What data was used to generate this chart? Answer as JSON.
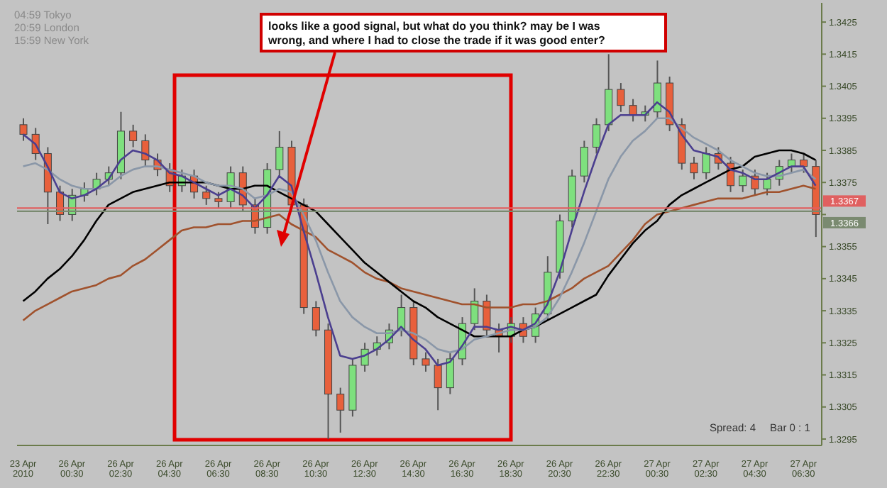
{
  "chart_data": {
    "type": "candlestick",
    "categories": [
      "23 Apr 2010",
      null,
      null,
      null,
      "26 Apr 00:30",
      null,
      null,
      null,
      "26 Apr 02:30",
      null,
      null,
      null,
      "26 Apr 04:30",
      null,
      null,
      null,
      "26 Apr 06:30",
      null,
      null,
      null,
      "26 Apr 08:30",
      null,
      null,
      null,
      "26 Apr 10:30",
      null,
      null,
      null,
      "26 Apr 12:30",
      null,
      null,
      null,
      "26 Apr 14:30",
      null,
      null,
      null,
      "26 Apr 16:30",
      null,
      null,
      null,
      "26 Apr 18:30",
      null,
      null,
      null,
      "26 Apr 20:30",
      null,
      null,
      null,
      "26 Apr 22:30",
      null,
      null,
      null,
      "27 Apr 00:30",
      null,
      null,
      null,
      "27 Apr 02:30",
      null,
      null,
      null,
      "27 Apr 04:30",
      null,
      null,
      null,
      "27 Apr 06:30",
      null
    ],
    "ohlc": [
      [
        1.3393,
        1.3395,
        1.3388,
        1.339
      ],
      [
        1.339,
        1.3392,
        1.3382,
        1.3384
      ],
      [
        1.3384,
        1.3386,
        1.3362,
        1.3372
      ],
      [
        1.3372,
        1.3374,
        1.3363,
        1.3365
      ],
      [
        1.3365,
        1.3373,
        1.3363,
        1.3371
      ],
      [
        1.3371,
        1.3375,
        1.3369,
        1.3373
      ],
      [
        1.3373,
        1.3378,
        1.3371,
        1.3376
      ],
      [
        1.3376,
        1.338,
        1.3374,
        1.3378
      ],
      [
        1.3378,
        1.3397,
        1.3376,
        1.3391
      ],
      [
        1.3391,
        1.3393,
        1.3386,
        1.3388
      ],
      [
        1.3388,
        1.339,
        1.338,
        1.3382
      ],
      [
        1.3382,
        1.3384,
        1.3377,
        1.3379
      ],
      [
        1.3379,
        1.3381,
        1.3372,
        1.3374
      ],
      [
        1.3374,
        1.3379,
        1.3372,
        1.3377
      ],
      [
        1.3377,
        1.3379,
        1.337,
        1.3372
      ],
      [
        1.3372,
        1.3374,
        1.3368,
        1.337
      ],
      [
        1.337,
        1.3372,
        1.3367,
        1.3369
      ],
      [
        1.3369,
        1.338,
        1.3367,
        1.3378
      ],
      [
        1.3378,
        1.338,
        1.3366,
        1.3368
      ],
      [
        1.3368,
        1.337,
        1.3359,
        1.3361
      ],
      [
        1.3361,
        1.3381,
        1.3359,
        1.3379
      ],
      [
        1.3379,
        1.3391,
        1.3377,
        1.3386
      ],
      [
        1.3386,
        1.3388,
        1.3366,
        1.3368
      ],
      [
        1.3368,
        1.337,
        1.3334,
        1.3336
      ],
      [
        1.3336,
        1.3338,
        1.3327,
        1.3329
      ],
      [
        1.3329,
        1.3331,
        1.3295,
        1.3309
      ],
      [
        1.3309,
        1.3311,
        1.3297,
        1.3304
      ],
      [
        1.3304,
        1.332,
        1.3302,
        1.3318
      ],
      [
        1.3318,
        1.3325,
        1.3316,
        1.3323
      ],
      [
        1.3323,
        1.3327,
        1.3321,
        1.3325
      ],
      [
        1.3325,
        1.3331,
        1.3323,
        1.3329
      ],
      [
        1.3329,
        1.334,
        1.3327,
        1.3336
      ],
      [
        1.3336,
        1.3338,
        1.3318,
        1.332
      ],
      [
        1.332,
        1.3322,
        1.3316,
        1.3318
      ],
      [
        1.3318,
        1.332,
        1.3304,
        1.3311
      ],
      [
        1.3311,
        1.3322,
        1.3309,
        1.332
      ],
      [
        1.332,
        1.3333,
        1.3318,
        1.3331
      ],
      [
        1.3331,
        1.3342,
        1.3329,
        1.3338
      ],
      [
        1.3338,
        1.334,
        1.3327,
        1.3329
      ],
      [
        1.3329,
        1.3331,
        1.3322,
        1.3327
      ],
      [
        1.3327,
        1.3333,
        1.3325,
        1.3331
      ],
      [
        1.3331,
        1.3333,
        1.3325,
        1.3327
      ],
      [
        1.3327,
        1.3336,
        1.3325,
        1.3334
      ],
      [
        1.3334,
        1.3352,
        1.3332,
        1.3347
      ],
      [
        1.3347,
        1.3365,
        1.3345,
        1.3363
      ],
      [
        1.3363,
        1.3379,
        1.3361,
        1.3377
      ],
      [
        1.3377,
        1.3388,
        1.3375,
        1.3386
      ],
      [
        1.3386,
        1.3395,
        1.3384,
        1.3393
      ],
      [
        1.3393,
        1.3415,
        1.3391,
        1.3404
      ],
      [
        1.3404,
        1.3406,
        1.3397,
        1.3399
      ],
      [
        1.3399,
        1.3401,
        1.3394,
        1.3396
      ],
      [
        1.3396,
        1.3399,
        1.3394,
        1.3397
      ],
      [
        1.3397,
        1.3413,
        1.3395,
        1.3406
      ],
      [
        1.3406,
        1.3408,
        1.3391,
        1.3393
      ],
      [
        1.3393,
        1.3395,
        1.3379,
        1.3381
      ],
      [
        1.3381,
        1.3383,
        1.3376,
        1.3378
      ],
      [
        1.3378,
        1.3386,
        1.3376,
        1.3384
      ],
      [
        1.3384,
        1.3386,
        1.3379,
        1.3381
      ],
      [
        1.3381,
        1.3383,
        1.3372,
        1.3374
      ],
      [
        1.3374,
        1.3379,
        1.3372,
        1.3377
      ],
      [
        1.3377,
        1.3379,
        1.3371,
        1.3373
      ],
      [
        1.3373,
        1.3378,
        1.3371,
        1.3376
      ],
      [
        1.3376,
        1.3382,
        1.3374,
        1.338
      ],
      [
        1.338,
        1.3384,
        1.3378,
        1.3382
      ],
      [
        1.3382,
        1.3384,
        1.3378,
        1.338
      ],
      [
        1.338,
        1.3382,
        1.3358,
        1.3365
      ]
    ],
    "colors": [
      "#e8603c",
      "#e8603c",
      "#e8603c",
      "#e8603c",
      "#7ee07e",
      "#7ee07e",
      "#7ee07e",
      "#7ee07e",
      "#7ee07e",
      "#e8603c",
      "#e8603c",
      "#e8603c",
      "#e8603c",
      "#7ee07e",
      "#e8603c",
      "#e8603c",
      "#e8603c",
      "#7ee07e",
      "#e8603c",
      "#e8603c",
      "#7ee07e",
      "#7ee07e",
      "#e8603c",
      "#e8603c",
      "#e8603c",
      "#e8603c",
      "#e8603c",
      "#7ee07e",
      "#7ee07e",
      "#7ee07e",
      "#7ee07e",
      "#7ee07e",
      "#e8603c",
      "#e8603c",
      "#e8603c",
      "#7ee07e",
      "#7ee07e",
      "#7ee07e",
      "#e8603c",
      "#e8603c",
      "#7ee07e",
      "#e8603c",
      "#7ee07e",
      "#7ee07e",
      "#7ee07e",
      "#7ee07e",
      "#7ee07e",
      "#7ee07e",
      "#7ee07e",
      "#e8603c",
      "#e8603c",
      "#7ee07e",
      "#7ee07e",
      "#e8603c",
      "#e8603c",
      "#e8603c",
      "#7ee07e",
      "#e8603c",
      "#e8603c",
      "#7ee07e",
      "#e8603c",
      "#7ee07e",
      "#7ee07e",
      "#7ee07e",
      "#e8603c",
      "#e8603c"
    ],
    "series": [
      {
        "type": "line",
        "color": "#a0522d",
        "values": [
          1.3332,
          1.3335,
          1.3337,
          1.3339,
          1.3341,
          1.3342,
          1.3343,
          1.3345,
          1.3346,
          1.3349,
          1.3351,
          1.3354,
          1.3357,
          1.336,
          1.3361,
          1.3361,
          1.3362,
          1.3362,
          1.3363,
          1.3363,
          1.3364,
          1.3365,
          1.3362,
          1.336,
          1.3358,
          1.3354,
          1.3352,
          1.335,
          1.3347,
          1.3345,
          1.3344,
          1.3342,
          1.3341,
          1.334,
          1.3339,
          1.3338,
          1.3337,
          1.3337,
          1.3336,
          1.3336,
          1.3336,
          1.3337,
          1.3337,
          1.3338,
          1.334,
          1.3342,
          1.3345,
          1.3347,
          1.3349,
          1.3353,
          1.3357,
          1.3362,
          1.3365,
          1.3366,
          1.3367,
          1.3368,
          1.3369,
          1.337,
          1.337,
          1.337,
          1.3371,
          1.3372,
          1.3372,
          1.3373,
          1.3374,
          1.3373
        ]
      },
      {
        "type": "line",
        "color": "#000000",
        "values": [
          1.3338,
          1.3341,
          1.3345,
          1.3348,
          1.3352,
          1.3357,
          1.3363,
          1.3368,
          1.337,
          1.3372,
          1.3373,
          1.3374,
          1.3375,
          1.3375,
          1.3375,
          1.3375,
          1.3374,
          1.3373,
          1.3373,
          1.3374,
          1.3374,
          1.3372,
          1.337,
          1.3368,
          1.3366,
          1.3362,
          1.3358,
          1.3354,
          1.335,
          1.3347,
          1.3344,
          1.3341,
          1.3338,
          1.3336,
          1.3333,
          1.3331,
          1.3329,
          1.3327,
          1.3327,
          1.3327,
          1.3327,
          1.3329,
          1.333,
          1.3332,
          1.3334,
          1.3336,
          1.3338,
          1.334,
          1.3346,
          1.3351,
          1.3356,
          1.336,
          1.3363,
          1.3368,
          1.3371,
          1.3373,
          1.3375,
          1.3377,
          1.3379,
          1.338,
          1.3383,
          1.3384,
          1.3385,
          1.3385,
          1.3384,
          1.3382
        ]
      },
      {
        "type": "line",
        "color": "#8a97a8",
        "values": [
          1.338,
          1.3381,
          1.3379,
          1.3376,
          1.3374,
          1.3373,
          1.3373,
          1.3374,
          1.3377,
          1.3379,
          1.338,
          1.338,
          1.3379,
          1.3378,
          1.3377,
          1.3375,
          1.3374,
          1.3374,
          1.3373,
          1.337,
          1.3371,
          1.3373,
          1.3372,
          1.3365,
          1.3357,
          1.3347,
          1.3338,
          1.3333,
          1.333,
          1.3328,
          1.3328,
          1.3329,
          1.3328,
          1.3326,
          1.3323,
          1.3322,
          1.3323,
          1.3326,
          1.3327,
          1.3328,
          1.3329,
          1.3329,
          1.333,
          1.3333,
          1.3339,
          1.3347,
          1.3356,
          1.3366,
          1.3376,
          1.3383,
          1.3388,
          1.3391,
          1.3395,
          1.3395,
          1.3392,
          1.3389,
          1.3387,
          1.3385,
          1.3382,
          1.338,
          1.3378,
          1.3377,
          1.3377,
          1.3378,
          1.3379,
          1.3376
        ]
      },
      {
        "type": "line",
        "color": "#4b3f8f",
        "values": [
          1.339,
          1.3387,
          1.338,
          1.3372,
          1.337,
          1.3371,
          1.3373,
          1.3376,
          1.3382,
          1.3385,
          1.3384,
          1.3382,
          1.3378,
          1.3377,
          1.3375,
          1.3373,
          1.3371,
          1.3373,
          1.3371,
          1.3367,
          1.3371,
          1.3377,
          1.3374,
          1.336,
          1.3347,
          1.3333,
          1.3321,
          1.332,
          1.3321,
          1.3323,
          1.3326,
          1.333,
          1.3326,
          1.3323,
          1.3318,
          1.3319,
          1.3324,
          1.333,
          1.333,
          1.3329,
          1.333,
          1.3329,
          1.3331,
          1.3337,
          1.3347,
          1.336,
          1.3372,
          1.3383,
          1.3393,
          1.3396,
          1.3396,
          1.3396,
          1.34,
          1.3397,
          1.339,
          1.3385,
          1.3384,
          1.3383,
          1.3379,
          1.3378,
          1.3376,
          1.3376,
          1.3378,
          1.338,
          1.338,
          1.3374
        ]
      }
    ],
    "ylim": [
      1.3293,
      1.3431
    ],
    "yticks": [
      1.3295,
      1.3305,
      1.3315,
      1.3325,
      1.3335,
      1.3345,
      1.3355,
      {
        "value": 1.3365,
        "label": null
      },
      1.3375,
      1.3385,
      1.3395,
      1.3405,
      1.3415,
      1.3425
    ],
    "ref_lines": [
      {
        "axis": "y",
        "value": 1.3367,
        "label": "1.3367",
        "color": "#e06060"
      },
      {
        "axis": "y",
        "value": 1.3366,
        "label": "1.3366",
        "color": "#7a8a70"
      }
    ],
    "annotations": [
      "looks like a good signal, but what do you think? may be I was wrong, and where I had to close the trade if it was good enter?",
      "04:59 Tokyo",
      "20:59 London",
      "15:59 New York",
      "Spread: 4",
      "Bar 0 : 1"
    ]
  }
}
